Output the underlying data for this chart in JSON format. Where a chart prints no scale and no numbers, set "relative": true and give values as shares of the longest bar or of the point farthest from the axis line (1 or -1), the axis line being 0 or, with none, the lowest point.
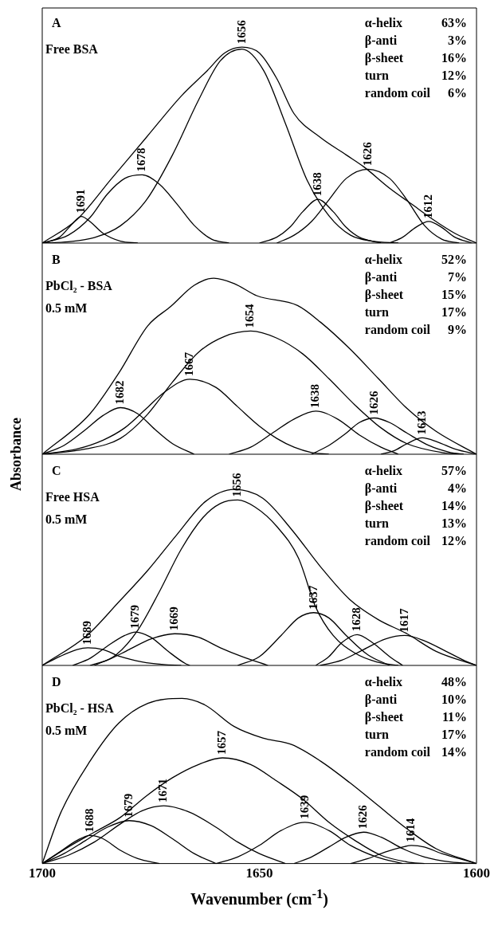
{
  "chart_data": [
    {
      "type": "line",
      "relative": true,
      "title": "A",
      "subtitle": "Free BSA",
      "xlim": [
        1700,
        1600
      ],
      "tick_labels": false,
      "series": [
        {
          "color": "#000000",
          "x": [
            1700,
            1692,
            1684,
            1676,
            1668,
            1662,
            1658,
            1654,
            1650,
            1646,
            1642,
            1636,
            1630,
            1626,
            1620,
            1615,
            1610,
            1605,
            1600
          ],
          "values": [
            0,
            0.12,
            0.33,
            0.54,
            0.75,
            0.88,
            0.97,
            1.0,
            0.97,
            0.84,
            0.66,
            0.54,
            0.45,
            0.39,
            0.28,
            0.2,
            0.12,
            0.05,
            0
          ]
        },
        {
          "color": "#000000",
          "x": [
            1700,
            1696,
            1693,
            1691,
            1689,
            1686,
            1682,
            1678
          ],
          "values": [
            0,
            0.03,
            0.1,
            0.136,
            0.11,
            0.05,
            0.01,
            0
          ]
        },
        {
          "color": "#000000",
          "x": [
            1700,
            1694,
            1689,
            1685,
            1681,
            1677,
            1673,
            1669,
            1665,
            1661,
            1657
          ],
          "values": [
            0,
            0.04,
            0.13,
            0.25,
            0.33,
            0.348,
            0.3,
            0.2,
            0.09,
            0.02,
            0
          ]
        },
        {
          "color": "#000000",
          "x": [
            1700,
            1694,
            1688,
            1682,
            1676,
            1670,
            1664,
            1659,
            1654,
            1649,
            1644,
            1639,
            1634,
            1629,
            1624,
            1618
          ],
          "values": [
            0,
            0.007,
            0.028,
            0.088,
            0.22,
            0.45,
            0.73,
            0.93,
            0.99,
            0.88,
            0.61,
            0.32,
            0.14,
            0.04,
            0.01,
            0
          ]
        },
        {
          "color": "#000000",
          "x": [
            1650,
            1646,
            1643,
            1640,
            1636.5,
            1633,
            1630,
            1627,
            1622
          ],
          "values": [
            0,
            0.03,
            0.08,
            0.16,
            0.223,
            0.16,
            0.08,
            0.03,
            0
          ]
        },
        {
          "color": "#000000",
          "x": [
            1646,
            1642,
            1638,
            1634,
            1630,
            1625,
            1620,
            1616,
            1612,
            1608,
            1604
          ],
          "values": [
            0,
            0.04,
            0.11,
            0.22,
            0.33,
            0.377,
            0.33,
            0.22,
            0.09,
            0.02,
            0
          ]
        },
        {
          "color": "#000000",
          "x": [
            1620,
            1617,
            1614,
            1611,
            1608,
            1605,
            1601
          ],
          "values": [
            0,
            0.03,
            0.08,
            0.11,
            0.08,
            0.03,
            0
          ]
        }
      ],
      "annotations": [
        "α-helix",
        "63%",
        "β-anti",
        "3%",
        "β-sheet",
        "16%",
        "turn",
        "12%",
        "random coil",
        "6%",
        {
          "text": "1691",
          "x": 1691,
          "y": 0.136
        },
        {
          "text": "1678",
          "x": 1677,
          "y": 0.348
        },
        {
          "text": "1656",
          "x": 1654,
          "y": 1.0
        },
        {
          "text": "1638",
          "x": 1636.5,
          "y": 0.223
        },
        {
          "text": "1626",
          "x": 1625,
          "y": 0.377
        },
        {
          "text": "1612",
          "x": 1611,
          "y": 0.11
        }
      ]
    },
    {
      "type": "line",
      "relative": true,
      "title": "B",
      "subtitle": "PbCl₂ - BSA\n0.5 mM",
      "ylabel": "Absorbance",
      "xlim": [
        1700,
        1600
      ],
      "tick_labels": false,
      "series": [
        {
          "color": "#000000",
          "x": [
            1700,
            1689,
            1682.4,
            1675.7,
            1670.4,
            1665,
            1660.5,
            1655.8,
            1650.5,
            1641.2,
            1635.9,
            1629.2,
            1622.6,
            1616,
            1609.3,
            1600
          ],
          "values": [
            0,
            0.23,
            0.46,
            0.73,
            0.84,
            0.96,
            1.0,
            0.97,
            0.9,
            0.845,
            0.75,
            0.6,
            0.43,
            0.26,
            0.13,
            0
          ]
        },
        {
          "color": "#000000",
          "x": [
            1700,
            1695,
            1690,
            1686,
            1682,
            1678,
            1674,
            1670,
            1665
          ],
          "values": [
            0,
            0.05,
            0.14,
            0.22,
            0.265,
            0.23,
            0.14,
            0.06,
            0
          ]
        },
        {
          "color": "#000000",
          "x": [
            1700,
            1692,
            1686,
            1681,
            1676,
            1672,
            1666,
            1660,
            1655,
            1650,
            1646,
            1642,
            1638,
            1634
          ],
          "values": [
            0,
            0.03,
            0.08,
            0.15,
            0.26,
            0.35,
            0.426,
            0.38,
            0.27,
            0.16,
            0.09,
            0.04,
            0.01,
            0
          ]
        },
        {
          "color": "#000000",
          "x": [
            1700,
            1690,
            1682,
            1676,
            1670,
            1664,
            1658,
            1652,
            1646,
            1640,
            1634,
            1628,
            1622,
            1616,
            1608,
            1603
          ],
          "values": [
            0,
            0.03,
            0.09,
            0.22,
            0.41,
            0.58,
            0.67,
            0.7,
            0.66,
            0.57,
            0.43,
            0.28,
            0.15,
            0.06,
            0.01,
            0
          ]
        },
        {
          "color": "#000000",
          "x": [
            1657,
            1652,
            1647,
            1642,
            1637,
            1632,
            1627,
            1622,
            1618
          ],
          "values": [
            0,
            0.04,
            0.12,
            0.2,
            0.245,
            0.2,
            0.11,
            0.04,
            0
          ]
        },
        {
          "color": "#000000",
          "x": [
            1638,
            1634,
            1630,
            1627,
            1623.5,
            1620,
            1616,
            1611,
            1606,
            1603
          ],
          "values": [
            0,
            0.05,
            0.12,
            0.18,
            0.206,
            0.18,
            0.12,
            0.05,
            0.01,
            0
          ]
        },
        {
          "color": "#000000",
          "x": [
            1622,
            1619,
            1616,
            1612.5,
            1609,
            1605,
            1600
          ],
          "values": [
            0,
            0.02,
            0.06,
            0.093,
            0.07,
            0.03,
            0
          ]
        }
      ],
      "annotations": [
        "α-helix",
        "52%",
        "β-anti",
        "7%",
        "β-sheet",
        "15%",
        "turn",
        "17%",
        "random coil",
        "9%",
        {
          "text": "1682",
          "x": 1682,
          "y": 0.265
        },
        {
          "text": "1667",
          "x": 1666,
          "y": 0.426
        },
        {
          "text": "1654",
          "x": 1652,
          "y": 0.7
        },
        {
          "text": "1638",
          "x": 1637,
          "y": 0.245
        },
        {
          "text": "1626",
          "x": 1623.5,
          "y": 0.206
        },
        {
          "text": "1613",
          "x": 1612.5,
          "y": 0.093
        }
      ]
    },
    {
      "type": "line",
      "relative": true,
      "title": "C",
      "subtitle": "Free HSA\n0.5 mM",
      "xlim": [
        1700,
        1600
      ],
      "tick_labels": false,
      "series": [
        {
          "color": "#000000",
          "x": [
            1700,
            1689.7,
            1682.4,
            1675.7,
            1669.1,
            1662.5,
            1655.8,
            1649.2,
            1642.5,
            1635.9,
            1629.2,
            1622.6,
            1616,
            1609.3,
            1600
          ],
          "values": [
            0,
            0.17,
            0.36,
            0.54,
            0.74,
            0.93,
            1.0,
            0.95,
            0.77,
            0.56,
            0.375,
            0.26,
            0.18,
            0.08,
            0
          ]
        },
        {
          "color": "#000000",
          "x": [
            1688,
            1683,
            1678,
            1673,
            1668,
            1663,
            1659,
            1655,
            1651,
            1646,
            1641,
            1637,
            1633,
            1628,
            1623,
            1618
          ],
          "values": [
            0,
            0.06,
            0.2,
            0.42,
            0.66,
            0.84,
            0.92,
            0.94,
            0.9,
            0.79,
            0.61,
            0.33,
            0.17,
            0.07,
            0.02,
            0
          ]
        },
        {
          "color": "#000000",
          "x": [
            1700,
            1696,
            1692,
            1689.5,
            1686,
            1682,
            1677,
            1672,
            1668
          ],
          "values": [
            0,
            0.05,
            0.09,
            0.1,
            0.09,
            0.05,
            0.02,
            0.005,
            0
          ]
        },
        {
          "color": "#000000",
          "x": [
            1693,
            1689,
            1685,
            1681,
            1678.5,
            1675,
            1671,
            1667,
            1666
          ],
          "values": [
            0,
            0.04,
            0.11,
            0.17,
            0.19,
            0.16,
            0.08,
            0.01,
            0
          ]
        },
        {
          "color": "#000000",
          "x": [
            1689,
            1685,
            1680,
            1675,
            1669.5,
            1664,
            1659,
            1654,
            1648
          ],
          "values": [
            0,
            0.03,
            0.09,
            0.15,
            0.18,
            0.16,
            0.1,
            0.05,
            0
          ]
        },
        {
          "color": "#000000",
          "x": [
            1655,
            1650,
            1645,
            1641,
            1637.5,
            1634,
            1630,
            1625,
            1620
          ],
          "values": [
            0,
            0.05,
            0.17,
            0.27,
            0.3,
            0.27,
            0.17,
            0.06,
            0
          ]
        },
        {
          "color": "#000000",
          "x": [
            1637,
            1634,
            1631,
            1627.5,
            1624,
            1620,
            1617
          ],
          "values": [
            0,
            0.05,
            0.13,
            0.175,
            0.13,
            0.05,
            0
          ]
        },
        {
          "color": "#000000",
          "x": [
            1636,
            1631,
            1626,
            1621,
            1616.5,
            1612,
            1607,
            1603,
            1600
          ],
          "values": [
            0,
            0.03,
            0.09,
            0.15,
            0.17,
            0.14,
            0.08,
            0.03,
            0
          ]
        }
      ],
      "annotations": [
        "α-helix",
        "57%",
        "β-anti",
        "4%",
        "β-sheet",
        "14%",
        "turn",
        "13%",
        "random coil",
        "12%",
        {
          "text": "1689",
          "x": 1689.5,
          "y": 0.1
        },
        {
          "text": "1679",
          "x": 1678.5,
          "y": 0.19
        },
        {
          "text": "1669",
          "x": 1669.5,
          "y": 0.18
        },
        {
          "text": "1656",
          "x": 1655,
          "y": 0.94
        },
        {
          "text": "1637",
          "x": 1637.5,
          "y": 0.3
        },
        {
          "text": "1628",
          "x": 1627.5,
          "y": 0.175
        },
        {
          "text": "1617",
          "x": 1616.5,
          "y": 0.17
        }
      ]
    },
    {
      "type": "line",
      "relative": true,
      "title": "D",
      "subtitle": "PbCl₂ - HSA\n0.5 mM",
      "xlabel": "Wavenumber (cm$^{-1}$)",
      "xlim": [
        1700,
        1600
      ],
      "xticks": [
        1700,
        1650,
        1600
      ],
      "tick_labels": "x",
      "series": [
        {
          "color": "#000000",
          "x": [
            1700,
            1695.7,
            1689,
            1682.4,
            1675.7,
            1667.8,
            1662.5,
            1655.8,
            1649.2,
            1642.5,
            1635.9,
            1629.2,
            1622.6,
            1616,
            1609.3,
            1600
          ],
          "values": [
            0,
            0.31,
            0.62,
            0.85,
            0.97,
            1.0,
            0.96,
            0.83,
            0.76,
            0.72,
            0.62,
            0.49,
            0.35,
            0.21,
            0.09,
            0
          ]
        },
        {
          "color": "#000000",
          "x": [
            1700,
            1696,
            1692,
            1689,
            1686,
            1682,
            1678,
            1673
          ],
          "values": [
            0,
            0.07,
            0.14,
            0.17,
            0.15,
            0.08,
            0.03,
            0
          ]
        },
        {
          "color": "#000000",
          "x": [
            1700,
            1695,
            1690,
            1685,
            1680,
            1675,
            1670,
            1665,
            1660
          ],
          "values": [
            0,
            0.06,
            0.14,
            0.22,
            0.26,
            0.23,
            0.15,
            0.06,
            0
          ]
        },
        {
          "color": "#000000",
          "x": [
            1700,
            1694,
            1688,
            1682,
            1677,
            1672,
            1666,
            1660,
            1655,
            1650,
            1644
          ],
          "values": [
            0,
            0.05,
            0.13,
            0.24,
            0.32,
            0.35,
            0.31,
            0.22,
            0.13,
            0.06,
            0
          ]
        },
        {
          "color": "#000000",
          "x": [
            1700,
            1694,
            1688,
            1682,
            1676,
            1670,
            1664,
            1658.5,
            1652,
            1646,
            1640,
            1634,
            1628,
            1622,
            1616,
            1612
          ],
          "values": [
            0,
            0.1,
            0.19,
            0.28,
            0.41,
            0.52,
            0.6,
            0.64,
            0.6,
            0.5,
            0.39,
            0.25,
            0.14,
            0.05,
            0.01,
            0
          ]
        },
        {
          "color": "#000000",
          "x": [
            1660,
            1655,
            1650,
            1645,
            1639.5,
            1634,
            1629,
            1623,
            1617
          ],
          "values": [
            0,
            0.04,
            0.11,
            0.2,
            0.25,
            0.2,
            0.11,
            0.04,
            0
          ]
        },
        {
          "color": "#000000",
          "x": [
            1642,
            1638,
            1634,
            1630,
            1626,
            1622,
            1617,
            1612,
            1606,
            1600
          ],
          "values": [
            0,
            0.04,
            0.1,
            0.16,
            0.19,
            0.16,
            0.09,
            0.04,
            0.01,
            0
          ]
        },
        {
          "color": "#000000",
          "x": [
            1629,
            1625,
            1621,
            1617,
            1615,
            1612,
            1608,
            1604,
            1600
          ],
          "values": [
            0,
            0.03,
            0.07,
            0.1,
            0.11,
            0.1,
            0.06,
            0.03,
            0
          ]
        }
      ],
      "annotations": [
        "α-helix",
        "48%",
        "β-anti",
        "10%",
        "β-sheet",
        "11%",
        "turn",
        "17%",
        "random coil",
        "14%",
        {
          "text": "1688",
          "x": 1689,
          "y": 0.17
        },
        {
          "text": "1679",
          "x": 1680,
          "y": 0.26
        },
        {
          "text": "1671",
          "x": 1672,
          "y": 0.35
        },
        {
          "text": "1657",
          "x": 1658.5,
          "y": 0.64
        },
        {
          "text": "1639",
          "x": 1639.5,
          "y": 0.25
        },
        {
          "text": "1626",
          "x": 1626,
          "y": 0.19
        },
        {
          "text": "1614",
          "x": 1615,
          "y": 0.11
        }
      ]
    }
  ]
}
